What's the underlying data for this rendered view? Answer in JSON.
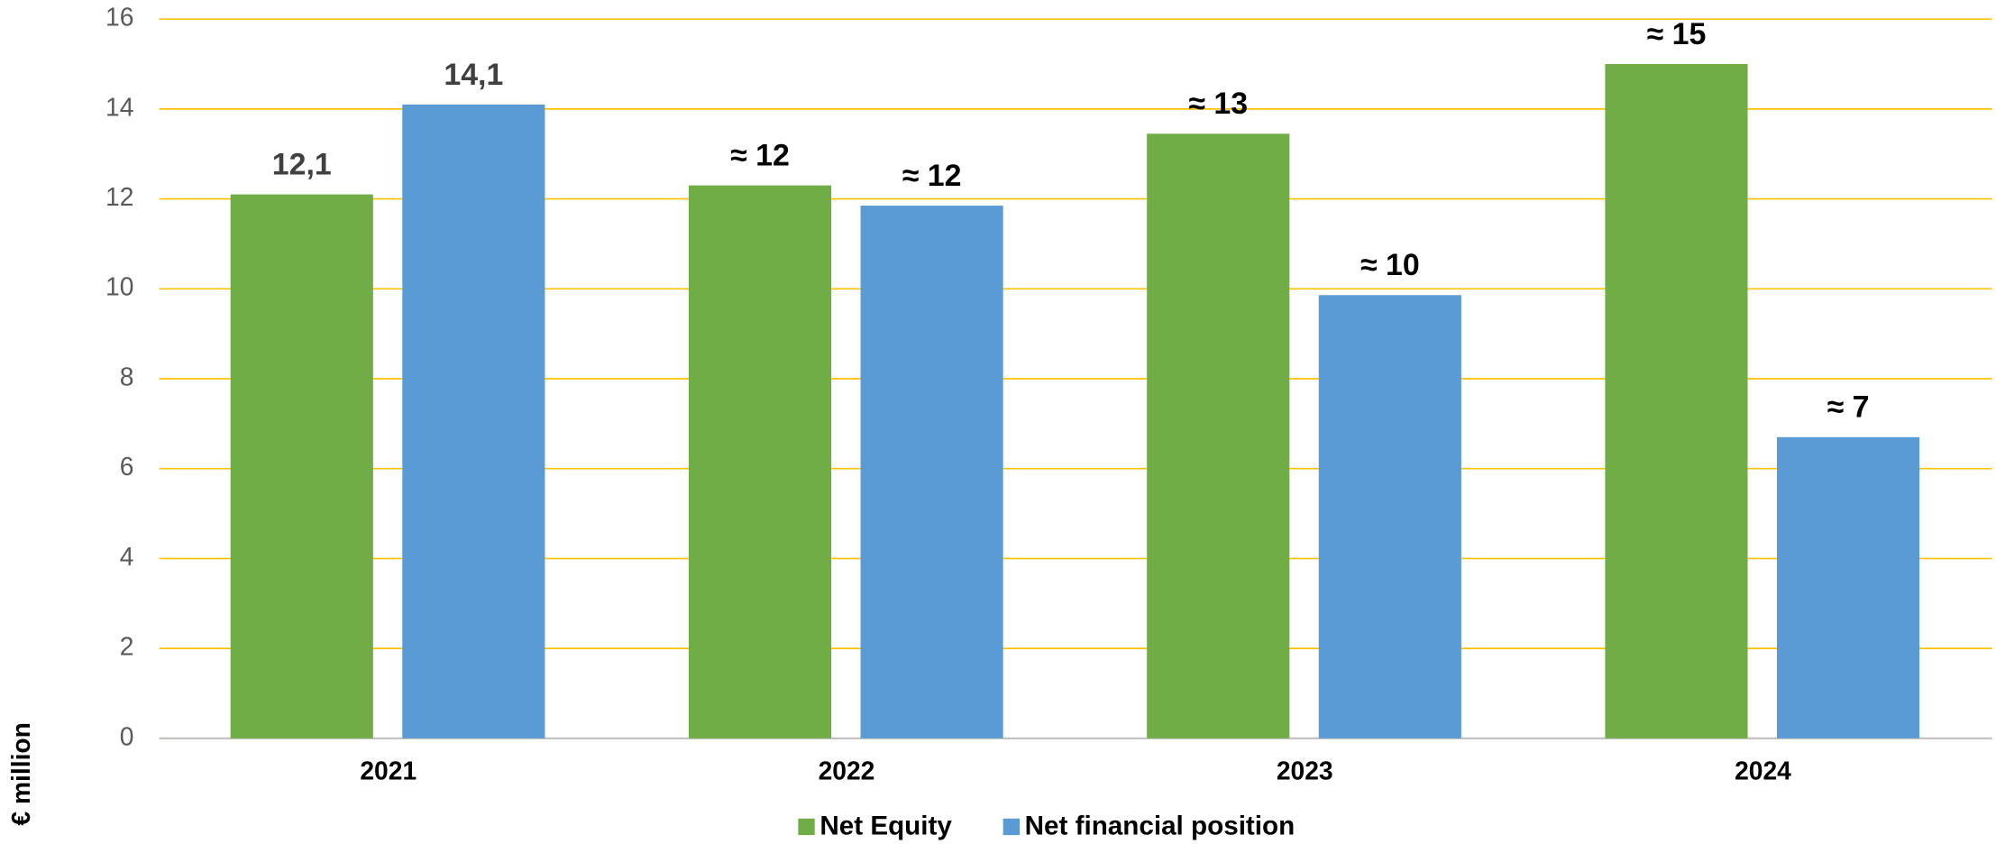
{
  "chart_data": {
    "type": "bar",
    "y_label": "€ million",
    "categories": [
      "2021",
      "2022",
      "2023",
      "2024"
    ],
    "series": [
      {
        "name": "Net Equity",
        "color": "#70ad47",
        "values": [
          12.1,
          12.3,
          13.45,
          15.0
        ],
        "value_labels": [
          "12,1",
          "≈ 12",
          "≈ 13",
          "≈ 15"
        ]
      },
      {
        "name": "Net financial position",
        "color": "#5b9bd5",
        "values": [
          14.1,
          11.85,
          9.86,
          6.7
        ],
        "value_labels": [
          "14,1",
          "≈ 12",
          "≈ 10",
          "≈ 7"
        ]
      }
    ],
    "ylim": [
      0,
      16
    ],
    "yticks": [
      0,
      2,
      4,
      6,
      8,
      10,
      12,
      14,
      16
    ],
    "grid": true,
    "grid_color": "#ffc000",
    "legend": "bottom"
  }
}
